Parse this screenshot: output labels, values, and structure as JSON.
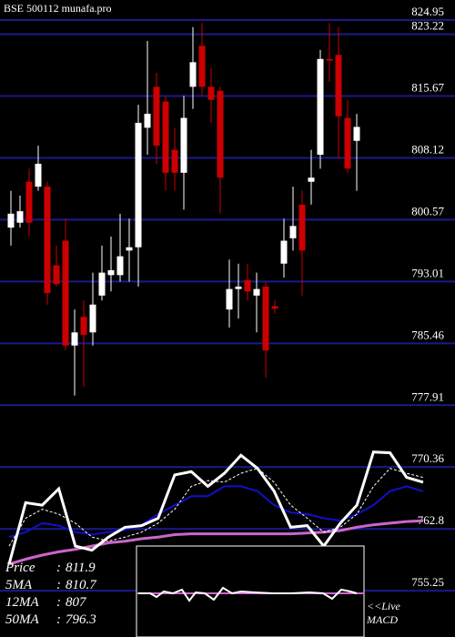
{
  "chart_data": {
    "type": "candlestick",
    "title": "BSE 500112 munafa.pro",
    "ylim": [
      749.6,
      827.4
    ],
    "yticks": [
      824.95,
      823.22,
      815.67,
      808.12,
      800.57,
      793.01,
      785.46,
      777.91,
      770.36,
      762.8,
      755.25
    ],
    "grid": true,
    "grid_color": "#1a1a8c",
    "up_color": "#ffffff",
    "down_color": "#cc0000",
    "open": [
      799.6,
      800.2,
      805.2,
      804.6,
      804.6,
      795.0,
      798.0,
      785.2,
      788.7,
      786.8,
      791.3,
      793.8,
      793.8,
      796.8,
      797.2,
      811.8,
      816.8,
      815.0,
      809.1,
      806.3,
      816.8,
      821.8,
      816.8,
      816.3,
      789.6,
      792.1,
      793.2,
      791.3,
      792.4,
      790.0,
      795.2,
      798.3,
      802.4,
      805.2,
      808.5,
      820.2,
      820.7,
      813.0,
      810.2
    ],
    "high": [
      804.1,
      803.5,
      806.8,
      809.6,
      805.2,
      797.4,
      800.7,
      789.6,
      790.7,
      794.1,
      797.4,
      798.5,
      801.3,
      800.7,
      814.6,
      822.4,
      818.5,
      815.7,
      811.8,
      815.7,
      824.1,
      824.6,
      819.1,
      816.8,
      795.7,
      795.2,
      795.2,
      794.1,
      793.0,
      790.7,
      800.7,
      804.6,
      804.1,
      809.1,
      821.3,
      824.6,
      824.1,
      815.2,
      813.5
    ],
    "low": [
      797.4,
      799.6,
      798.5,
      804.1,
      790.2,
      792.4,
      784.6,
      779.1,
      780.2,
      785.2,
      790.7,
      791.8,
      793.0,
      793.0,
      792.4,
      808.5,
      807.4,
      804.1,
      804.1,
      801.8,
      814.1,
      815.7,
      812.4,
      801.3,
      787.4,
      788.5,
      790.7,
      786.8,
      781.3,
      789.1,
      793.5,
      796.8,
      791.3,
      802.4,
      806.8,
      817.4,
      808.0,
      806.3,
      804.1
    ],
    "close": [
      801.3,
      801.6,
      800.2,
      807.4,
      791.6,
      792.7,
      785.2,
      786.8,
      786.5,
      790.2,
      794.1,
      794.4,
      796.1,
      797.2,
      812.4,
      813.5,
      809.6,
      806.3,
      806.3,
      813.0,
      819.8,
      816.8,
      815.2,
      805.7,
      792.1,
      792.4,
      791.8,
      792.1,
      784.6,
      789.7,
      798.0,
      799.8,
      796.8,
      805.7,
      820.2,
      820.0,
      813.2,
      806.8,
      811.9
    ],
    "lines": [
      {
        "color": "#cc66cc",
        "width": 3,
        "dashed": false,
        "values": [
          758.5,
          759.1,
          759.6,
          760.0,
          760.3,
          760.7,
          761.1,
          761.3,
          761.6,
          761.8,
          762.1,
          762.2,
          762.2,
          762.2,
          762.2,
          762.2,
          762.2,
          762.2,
          762.3,
          762.4,
          762.6,
          763.0,
          763.3,
          763.5,
          763.7,
          763.8
        ]
      },
      {
        "color": "#1010c8",
        "width": 2,
        "dashed": false,
        "values": [
          761.8,
          762.4,
          763.5,
          763.2,
          762.4,
          762.1,
          762.4,
          762.7,
          763.3,
          764.6,
          765.7,
          766.8,
          766.8,
          768.0,
          768.0,
          767.4,
          765.7,
          764.8,
          764.6,
          764.1,
          763.8,
          764.6,
          765.7,
          767.4,
          768.0,
          767.4
        ]
      },
      {
        "color": "#ffffff",
        "width": 1,
        "dashed": true,
        "values": [
          760.7,
          764.1,
          765.2,
          764.6,
          763.5,
          761.8,
          761.3,
          761.8,
          762.4,
          763.5,
          765.2,
          768.0,
          768.7,
          768.5,
          769.6,
          770.2,
          768.5,
          765.7,
          764.1,
          762.4,
          763.0,
          764.6,
          768.0,
          770.2,
          769.6,
          769.1
        ]
      },
      {
        "color": "#ffffff",
        "width": 3,
        "dashed": false,
        "values": [
          758.5,
          766.0,
          765.7,
          767.7,
          760.7,
          760.2,
          761.8,
          763.0,
          763.2,
          764.1,
          769.4,
          769.8,
          768.0,
          769.6,
          771.8,
          770.2,
          767.4,
          763.0,
          763.2,
          760.7,
          763.5,
          765.7,
          772.2,
          772.1,
          769.1,
          768.5
        ]
      }
    ],
    "stats": [
      {
        "label": "Price",
        "value": 811.9
      },
      {
        "label": "5MA",
        "value": 810.7
      },
      {
        "label": "12MA",
        "value": 807
      },
      {
        "label": "50MA",
        "value": 796.3
      }
    ],
    "separator": ":",
    "live_label": "<<Live",
    "macd_label": "MACD"
  }
}
